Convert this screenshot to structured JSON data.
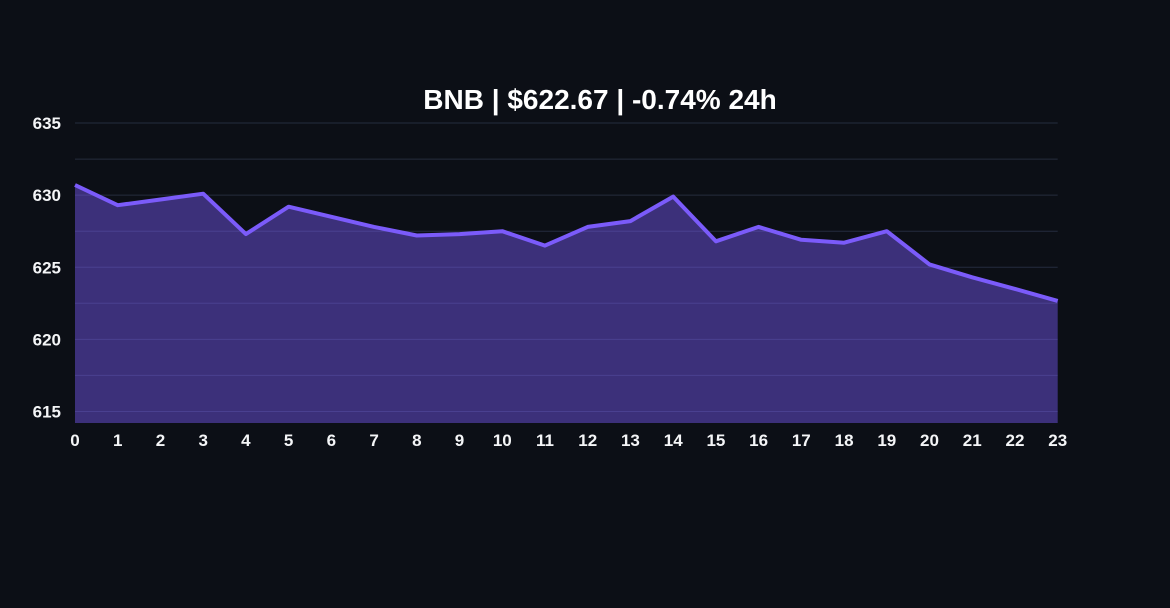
{
  "page": {
    "background_color": "#0c0f16",
    "text_color": "#f4f5f7"
  },
  "chart_data": {
    "type": "area",
    "title": "BNB | $622.67 | -0.74% 24h",
    "coin": "BNB",
    "price": "$622.67",
    "change_24h": "-0.74%",
    "period_label": "24h",
    "x": [
      0,
      1,
      2,
      3,
      4,
      5,
      6,
      7,
      8,
      9,
      10,
      11,
      12,
      13,
      14,
      15,
      16,
      17,
      18,
      19,
      20,
      21,
      22,
      23
    ],
    "values": [
      630.7,
      629.3,
      629.7,
      630.1,
      627.3,
      629.2,
      628.5,
      627.8,
      627.2,
      627.3,
      627.5,
      626.5,
      627.8,
      628.2,
      629.9,
      626.8,
      627.8,
      626.9,
      626.7,
      627.5,
      625.2,
      624.3,
      623.5,
      622.67
    ],
    "xlabel": "",
    "ylabel": "",
    "ylim": [
      614.2,
      635.8
    ],
    "yticks": [
      615,
      620,
      625,
      630,
      635
    ],
    "grid_values": [
      615,
      617.5,
      620,
      622.5,
      625,
      627.5,
      630,
      632.5,
      635
    ],
    "grid": true,
    "legend_position": "none",
    "colors": {
      "line": "#7b5bfa",
      "fill": "rgba(123,91,250,0.44)",
      "grid": "#252c3e",
      "tick_text": "#f4f5f7",
      "title_text": "#ffffff"
    }
  }
}
